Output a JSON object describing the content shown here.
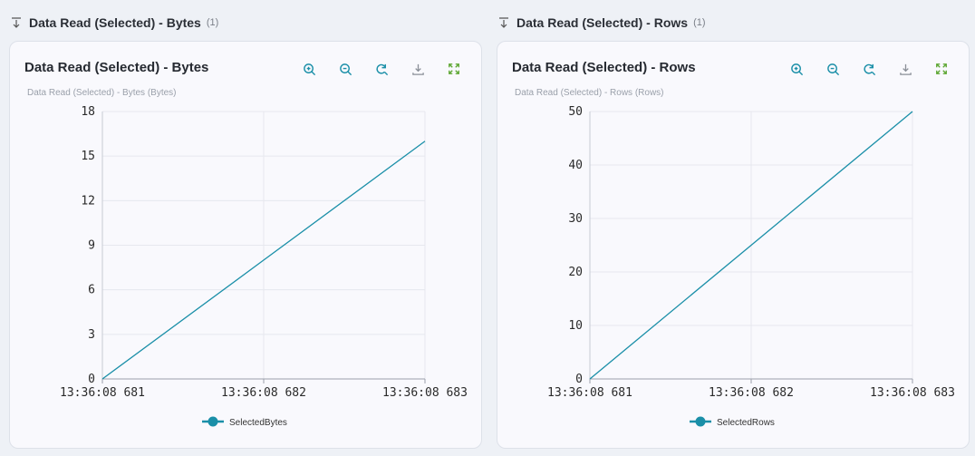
{
  "sections": [
    {
      "header": "Data Read (Selected) - Bytes",
      "count": "(1)",
      "title": "Data Read (Selected) - Bytes",
      "subtitle": "Data Read (Selected) - Bytes (Bytes)"
    },
    {
      "header": "Data Read (Selected) - Rows",
      "count": "(1)",
      "title": "Data Read (Selected) - Rows",
      "subtitle": "Data Read (Selected) - Rows (Rows)"
    }
  ],
  "toolbar_icons": [
    "zoom-in-icon",
    "zoom-out-icon",
    "reset-zoom-icon",
    "download-icon",
    "expand-icon"
  ],
  "colors": {
    "line": "#1a8fa8",
    "grid": "#e6e8ee",
    "icon": "#1a8fa8",
    "expand": "#5aa52e"
  },
  "chart_data": [
    {
      "type": "line",
      "x": [
        "13:36:08 681",
        "13:36:08 682",
        "13:36:08 683"
      ],
      "yticks": [
        0,
        3,
        6,
        9,
        12,
        15,
        18
      ],
      "ylim": [
        0,
        18
      ],
      "series": [
        {
          "name": "SelectedBytes",
          "values": [
            0,
            8,
            16
          ]
        }
      ],
      "legend": "bottom-center",
      "grid": true
    },
    {
      "type": "line",
      "x": [
        "13:36:08 681",
        "13:36:08 682",
        "13:36:08 683"
      ],
      "yticks": [
        0,
        10,
        20,
        30,
        40,
        50
      ],
      "ylim": [
        0,
        50
      ],
      "series": [
        {
          "name": "SelectedRows",
          "values": [
            0,
            25,
            50
          ]
        }
      ],
      "legend": "bottom-center",
      "grid": true
    }
  ]
}
